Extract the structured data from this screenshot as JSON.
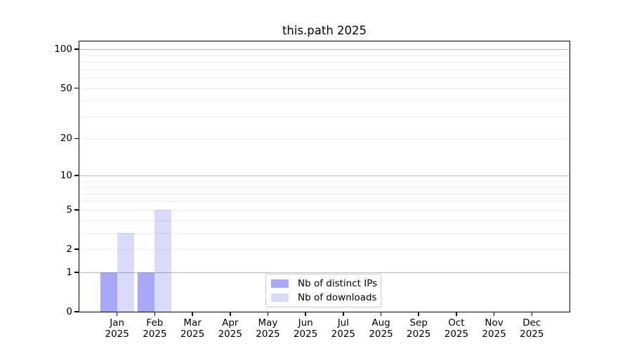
{
  "chart_data": {
    "type": "bar",
    "title": "this.path 2025",
    "x_tick_labels": [
      {
        "month": "Jan",
        "year": "2025"
      },
      {
        "month": "Feb",
        "year": "2025"
      },
      {
        "month": "Mar",
        "year": "2025"
      },
      {
        "month": "Apr",
        "year": "2025"
      },
      {
        "month": "May",
        "year": "2025"
      },
      {
        "month": "Jun",
        "year": "2025"
      },
      {
        "month": "Jul",
        "year": "2025"
      },
      {
        "month": "Aug",
        "year": "2025"
      },
      {
        "month": "Sep",
        "year": "2025"
      },
      {
        "month": "Oct",
        "year": "2025"
      },
      {
        "month": "Nov",
        "year": "2025"
      },
      {
        "month": "Dec",
        "year": "2025"
      }
    ],
    "series": [
      {
        "name": "Nb of distinct IPs",
        "color": "rgba(95,95,238,0.55)",
        "values": [
          1,
          1,
          0,
          0,
          0,
          0,
          0,
          0,
          0,
          0,
          0,
          0
        ]
      },
      {
        "name": "Nb of downloads",
        "color": "rgba(95,95,238,0.23)",
        "values": [
          3,
          5,
          0,
          0,
          0,
          0,
          0,
          0,
          0,
          0,
          0,
          0
        ]
      }
    ],
    "y_scale": "log1p",
    "ylim": [
      0,
      115
    ],
    "y_ticks": [
      0,
      1,
      2,
      5,
      10,
      20,
      50,
      100
    ],
    "y_major_gridlines": [
      1,
      10,
      100
    ],
    "y_minor_gridlines": [
      2,
      3,
      4,
      5,
      6,
      7,
      8,
      9,
      20,
      30,
      40,
      50,
      60,
      70,
      80,
      90
    ],
    "grid": "horizontal",
    "legend_position": "lower center",
    "xlabel": "",
    "ylabel": ""
  },
  "colors": {
    "axis": "#000000",
    "major_gridline": "#b8b8b8",
    "minor_gridline": "#ebebeb",
    "legend_border": "#c9c9c9",
    "background": "#ffffff"
  }
}
